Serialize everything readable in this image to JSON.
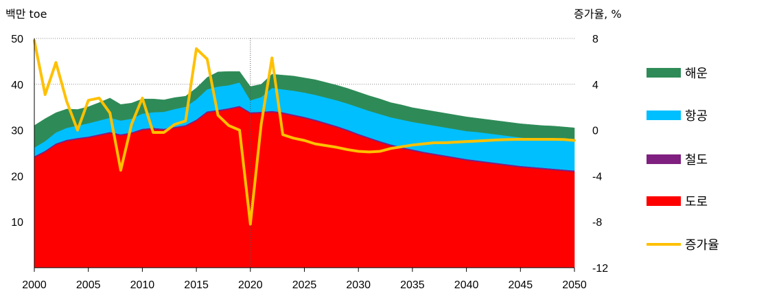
{
  "chart_data": {
    "type": "area",
    "left_unit_label": "백만 toe",
    "right_unit_label": "증가율, %",
    "x": [
      2000,
      2001,
      2002,
      2003,
      2004,
      2005,
      2006,
      2007,
      2008,
      2009,
      2010,
      2011,
      2012,
      2013,
      2014,
      2015,
      2016,
      2017,
      2018,
      2019,
      2020,
      2021,
      2022,
      2023,
      2024,
      2025,
      2026,
      2027,
      2028,
      2029,
      2030,
      2031,
      2032,
      2033,
      2034,
      2035,
      2036,
      2037,
      2038,
      2039,
      2040,
      2041,
      2042,
      2043,
      2044,
      2045,
      2046,
      2047,
      2048,
      2049,
      2050
    ],
    "xlim": [
      2000,
      2050
    ],
    "x_ticks": [
      "2000",
      "2005",
      "2010",
      "2015",
      "2020",
      "2025",
      "2030",
      "2035",
      "2040",
      "2045",
      "2050"
    ],
    "y_left": {
      "lim": [
        0,
        50
      ],
      "ticks": [
        "10",
        "20",
        "30",
        "40",
        "50"
      ]
    },
    "y_right": {
      "lim": [
        -12,
        8
      ],
      "ticks": [
        "-12",
        "-8",
        "-4",
        "0",
        "4",
        "8"
      ]
    },
    "reference_line_x": 2020,
    "gridlines": "dotted horizontal at right-axis ticks",
    "legend_position": "right",
    "stacked_series": [
      {
        "name": "도로",
        "color": "#FF0000",
        "values": [
          24.0,
          25.2,
          26.8,
          27.6,
          28.0,
          28.3,
          28.8,
          29.3,
          28.8,
          29.2,
          30.0,
          30.2,
          30.0,
          30.4,
          30.8,
          32.0,
          33.8,
          34.1,
          34.5,
          35.0,
          33.6,
          33.7,
          33.9,
          33.6,
          33.1,
          32.6,
          32.0,
          31.3,
          30.6,
          29.8,
          28.9,
          28.1,
          27.3,
          26.6,
          26.0,
          25.5,
          25.0,
          24.6,
          24.2,
          23.8,
          23.4,
          23.1,
          22.8,
          22.5,
          22.2,
          21.9,
          21.7,
          21.5,
          21.3,
          21.1,
          20.9
        ]
      },
      {
        "name": "철도",
        "color": "#7F1F7F",
        "values": [
          0.3,
          0.3,
          0.3,
          0.3,
          0.3,
          0.3,
          0.3,
          0.3,
          0.3,
          0.3,
          0.3,
          0.3,
          0.3,
          0.3,
          0.3,
          0.3,
          0.3,
          0.3,
          0.3,
          0.3,
          0.3,
          0.3,
          0.3,
          0.3,
          0.3,
          0.3,
          0.3,
          0.3,
          0.3,
          0.3,
          0.3,
          0.3,
          0.3,
          0.3,
          0.3,
          0.3,
          0.3,
          0.3,
          0.3,
          0.3,
          0.3,
          0.3,
          0.3,
          0.3,
          0.3,
          0.3,
          0.3,
          0.3,
          0.3,
          0.3,
          0.3
        ]
      },
      {
        "name": "항공",
        "color": "#00BFFF",
        "values": [
          1.9,
          2.1,
          2.4,
          2.6,
          2.7,
          2.9,
          3.0,
          3.1,
          3.0,
          3.0,
          3.3,
          3.4,
          3.7,
          3.9,
          4.0,
          4.4,
          4.8,
          5.1,
          5.0,
          5.1,
          2.6,
          3.2,
          5.0,
          5.0,
          5.2,
          5.3,
          5.4,
          5.5,
          5.6,
          5.7,
          5.8,
          5.8,
          5.9,
          5.9,
          6.0,
          6.0,
          6.1,
          6.1,
          6.1,
          6.1,
          6.1,
          6.2,
          6.2,
          6.2,
          6.2,
          6.2,
          6.2,
          6.2,
          6.3,
          6.3,
          6.3
        ]
      },
      {
        "name": "해운",
        "color": "#2E8B57",
        "values": [
          4.8,
          4.9,
          4.3,
          4.1,
          3.5,
          3.6,
          3.9,
          4.3,
          3.5,
          3.4,
          3.2,
          2.9,
          2.6,
          2.5,
          2.3,
          2.5,
          2.6,
          3.2,
          3.0,
          2.4,
          3.0,
          2.8,
          3.0,
          3.1,
          3.2,
          3.2,
          3.3,
          3.3,
          3.3,
          3.3,
          3.3,
          3.3,
          3.3,
          3.2,
          3.2,
          3.1,
          3.1,
          3.1,
          3.1,
          3.1,
          3.1,
          3.0,
          3.0,
          3.0,
          3.0,
          3.0,
          3.0,
          3.0,
          3.0,
          3.0,
          3.0
        ]
      }
    ],
    "line_series": {
      "name": "증가율",
      "color": "#FFC000",
      "axis": "right",
      "values": [
        7.8,
        3.1,
        5.9,
        2.5,
        0.0,
        2.6,
        2.8,
        1.5,
        -3.5,
        0.5,
        2.8,
        -0.2,
        -0.2,
        0.5,
        0.8,
        7.1,
        6.2,
        1.3,
        0.4,
        0.0,
        -8.2,
        0.5,
        6.3,
        -0.4,
        -0.7,
        -0.9,
        -1.2,
        -1.35,
        -1.5,
        -1.7,
        -1.85,
        -1.9,
        -1.85,
        -1.6,
        -1.45,
        -1.3,
        -1.2,
        -1.1,
        -1.1,
        -1.05,
        -1.0,
        -0.95,
        -0.9,
        -0.85,
        -0.82,
        -0.8,
        -0.8,
        -0.8,
        -0.8,
        -0.82,
        -0.9
      ]
    },
    "legend": [
      {
        "label": "해운",
        "color": "#2E8B57",
        "kind": "bar"
      },
      {
        "label": "항공",
        "color": "#00BFFF",
        "kind": "bar"
      },
      {
        "label": "철도",
        "color": "#7F1F7F",
        "kind": "bar"
      },
      {
        "label": "도로",
        "color": "#FF0000",
        "kind": "bar"
      },
      {
        "label": "증가율",
        "color": "#FFC000",
        "kind": "line"
      }
    ]
  }
}
